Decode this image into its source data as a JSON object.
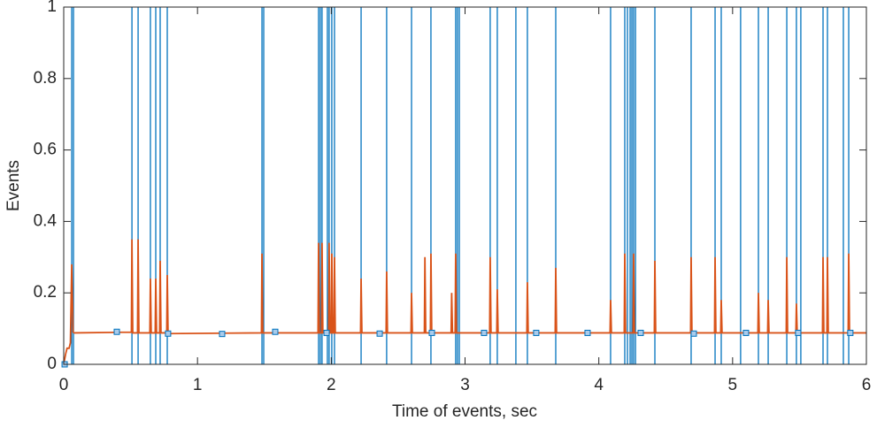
{
  "chart_data": {
    "type": "line",
    "xlabel": "Time of events, sec",
    "ylabel": "Events",
    "xlim": [
      0,
      6
    ],
    "xticks": [
      0,
      1,
      2,
      3,
      4,
      5,
      6
    ],
    "ylim": [
      0,
      1
    ],
    "yticks": [
      0,
      0.2,
      0.4,
      0.6,
      0.8,
      1
    ],
    "grid": false,
    "box": true,
    "series": [
      {
        "mode": "stem",
        "color": "#0072bd",
        "x": [
          0.06,
          0.073,
          0.51,
          0.556,
          0.648,
          0.688,
          0.721,
          0.774,
          1.482,
          1.495,
          1.905,
          1.918,
          1.931,
          1.971,
          1.984,
          2.004,
          2.024,
          2.223,
          2.414,
          2.6,
          2.745,
          2.93,
          2.943,
          2.957,
          3.188,
          3.241,
          3.38,
          3.466,
          3.678,
          4.088,
          4.194,
          4.214,
          4.234,
          4.247,
          4.26,
          4.274,
          4.419,
          4.69,
          4.869,
          4.915,
          5.06,
          5.193,
          5.266,
          5.405,
          5.477,
          5.51,
          5.676,
          5.709,
          5.828,
          5.868
        ],
        "values": [
          1,
          1,
          1,
          1,
          1,
          1,
          1,
          1,
          1,
          1,
          1,
          1,
          1,
          1,
          1,
          1,
          1,
          1,
          1,
          1,
          1,
          1,
          1,
          1,
          1,
          1,
          1,
          1,
          1,
          1,
          1,
          1,
          1,
          1,
          1,
          1,
          1,
          1,
          1,
          1,
          1,
          1,
          1,
          1,
          1,
          1,
          1,
          1,
          1,
          1
        ]
      },
      {
        "mode": "line",
        "color": "#d95319",
        "x": [
          0,
          0.015,
          0.025,
          0.04,
          0.05,
          0.06,
          0.07,
          0.08,
          0.506,
          0.51,
          0.516,
          0.552,
          0.556,
          0.562,
          0.644,
          0.648,
          0.654,
          0.684,
          0.688,
          0.694,
          0.717,
          0.721,
          0.727,
          0.77,
          0.774,
          0.78,
          1.478,
          1.482,
          1.488,
          1.901,
          1.905,
          1.911,
          1.927,
          1.931,
          1.937,
          1.98,
          1.984,
          1.99,
          2.0,
          2.004,
          2.01,
          2.02,
          2.024,
          2.03,
          2.219,
          2.223,
          2.229,
          2.41,
          2.414,
          2.42,
          2.596,
          2.6,
          2.606,
          2.696,
          2.7,
          2.706,
          2.741,
          2.745,
          2.751,
          2.896,
          2.9,
          2.906,
          2.926,
          2.93,
          2.936,
          3.184,
          3.188,
          3.194,
          3.237,
          3.241,
          3.247,
          3.462,
          3.466,
          3.472,
          3.674,
          3.678,
          3.684,
          4.084,
          4.088,
          4.094,
          4.19,
          4.194,
          4.2,
          4.256,
          4.26,
          4.266,
          4.415,
          4.419,
          4.425,
          4.686,
          4.69,
          4.696,
          4.865,
          4.869,
          4.875,
          4.911,
          4.915,
          4.921,
          5.189,
          5.193,
          5.199,
          5.262,
          5.266,
          5.272,
          5.401,
          5.405,
          5.411,
          5.473,
          5.477,
          5.483,
          5.672,
          5.676,
          5.682,
          5.705,
          5.709,
          5.715,
          5.864,
          5.868,
          5.874,
          6
        ],
        "values": [
          0,
          0.03,
          0.045,
          0.045,
          0.06,
          0.28,
          0.09,
          0.088,
          0.09,
          0.35,
          0.088,
          0.088,
          0.35,
          0.088,
          0.088,
          0.24,
          0.088,
          0.088,
          0.24,
          0.088,
          0.088,
          0.29,
          0.088,
          0.088,
          0.25,
          0.086,
          0.088,
          0.31,
          0.088,
          0.088,
          0.34,
          0.088,
          0.088,
          0.34,
          0.088,
          0.088,
          0.34,
          0.088,
          0.088,
          0.31,
          0.088,
          0.088,
          0.3,
          0.088,
          0.088,
          0.24,
          0.088,
          0.088,
          0.26,
          0.088,
          0.088,
          0.2,
          0.088,
          0.088,
          0.3,
          0.088,
          0.088,
          0.31,
          0.088,
          0.088,
          0.2,
          0.088,
          0.088,
          0.31,
          0.088,
          0.088,
          0.3,
          0.088,
          0.088,
          0.21,
          0.088,
          0.088,
          0.23,
          0.088,
          0.088,
          0.27,
          0.088,
          0.088,
          0.18,
          0.088,
          0.088,
          0.31,
          0.088,
          0.088,
          0.31,
          0.088,
          0.088,
          0.29,
          0.088,
          0.088,
          0.3,
          0.088,
          0.088,
          0.3,
          0.088,
          0.088,
          0.18,
          0.088,
          0.088,
          0.2,
          0.088,
          0.088,
          0.18,
          0.088,
          0.088,
          0.3,
          0.088,
          0.088,
          0.17,
          0.088,
          0.088,
          0.3,
          0.088,
          0.088,
          0.3,
          0.088,
          0.088,
          0.31,
          0.088,
          0.088
        ]
      },
      {
        "mode": "markers",
        "color": "#0072bd",
        "marker_fill": "#a9cbeb",
        "x": [
          0.007,
          0.397,
          0.78,
          1.184,
          1.581,
          1.965,
          2.362,
          2.752,
          3.142,
          3.532,
          3.916,
          4.313,
          4.71,
          5.1,
          5.49,
          5.88
        ],
        "values": [
          0,
          0.091,
          0.086,
          0.085,
          0.091,
          0.088,
          0.086,
          0.088,
          0.088,
          0.088,
          0.088,
          0.088,
          0.086,
          0.088,
          0.088,
          0.088
        ]
      }
    ]
  }
}
